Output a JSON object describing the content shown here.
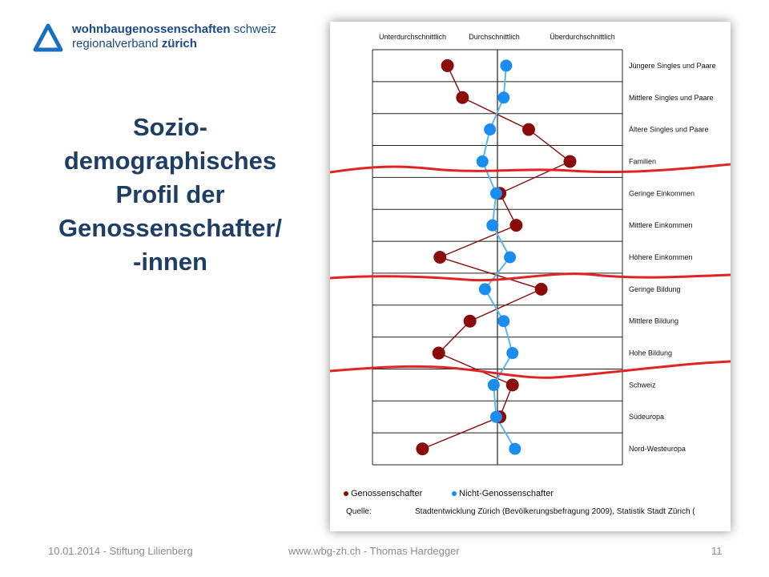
{
  "logo": {
    "line1_bold": "wohnbaugenossenschaften",
    "line1_rest": "schweiz",
    "line2_rest": "regionalverband",
    "line2_bold": "zürich"
  },
  "title_lines": [
    "Sozio-",
    "demographisches",
    "Profil der",
    "Genossenschafter/",
    "-innen"
  ],
  "footer": {
    "left": "10.01.2014 - Stiftung Lilienberg",
    "center": "www.wbg-zh.ch  - Thomas Hardegger",
    "page": "11"
  },
  "colors": {
    "genossenschafter": "#8b0a0a",
    "nicht_genossenschafter": "#1a8ef0",
    "title": "#1f3e64",
    "annotation": "#e02424"
  },
  "chart_data": {
    "type": "line",
    "orientation": "horizontal-profile",
    "column_headers": [
      "Unterdurchschnittlich",
      "Durchschnittlich",
      "Überdurchschnittlich"
    ],
    "categories": [
      "Jüngere Singles und Paare",
      "Mittlere Singles und Paare",
      "Ältere Singles und Paare",
      "Familien",
      "Geringe Einkommen",
      "Mittlere Einkommen",
      "Höhere Einkommen",
      "Geringe Bildung",
      "Mittlere Bildung",
      "Hohe Bildung",
      "Schweiz",
      "Südeuropa",
      "Nord-Westeuropa"
    ],
    "xlim": [
      -1,
      1
    ],
    "series": [
      {
        "name": "Genossenschafter",
        "values": [
          -0.4,
          -0.28,
          0.25,
          0.58,
          0.02,
          0.15,
          -0.46,
          0.35,
          -0.22,
          -0.47,
          0.12,
          0.02,
          -0.6
        ]
      },
      {
        "name": "Nicht-Genossenschafter",
        "values": [
          0.07,
          0.05,
          -0.06,
          -0.12,
          -0.01,
          -0.04,
          0.1,
          -0.1,
          0.05,
          0.12,
          -0.03,
          -0.01,
          0.14
        ]
      }
    ],
    "source_label": "Quelle:",
    "source_text": "Stadtentwicklung Zürich (Bevölkerungsbefragung 2009), Statistik Stadt Zürich (",
    "legend_position": "bottom-left",
    "grid": true
  }
}
